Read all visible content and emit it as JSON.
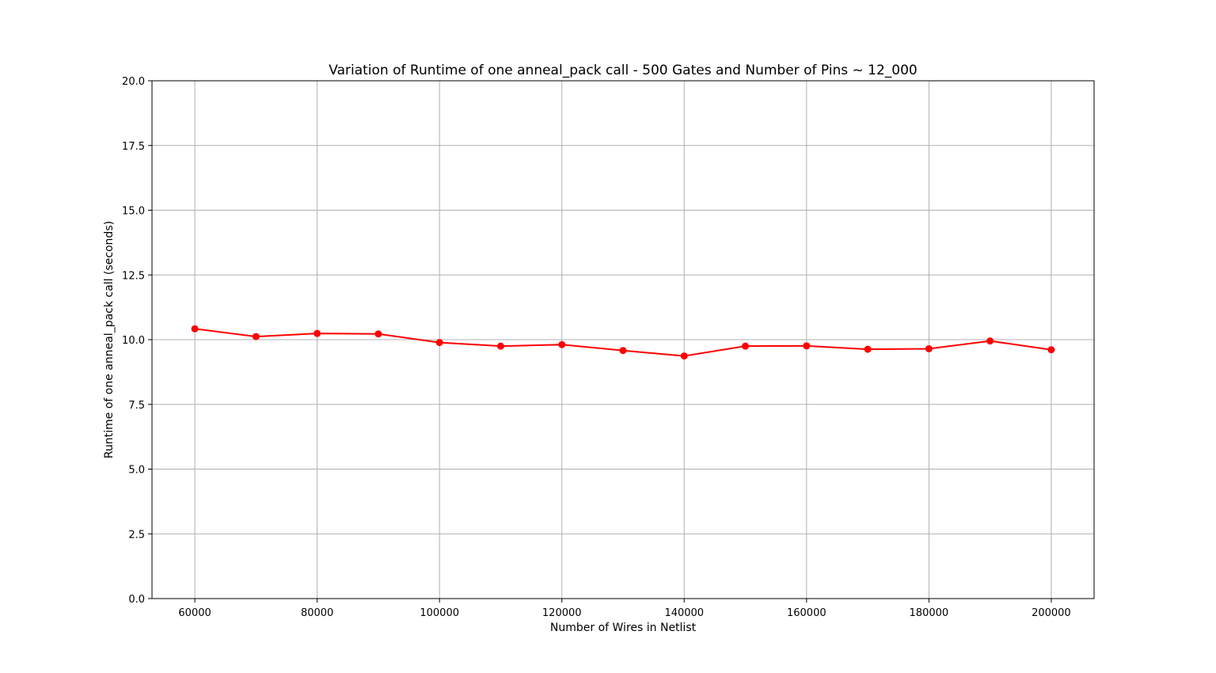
{
  "chart_data": {
    "type": "line",
    "title": "Variation of Runtime of one anneal_pack call - 500 Gates and Number of Pins ~ 12_000",
    "xlabel": "Number of Wires in Netlist",
    "ylabel": "Runtime of one anneal_pack call (seconds)",
    "xlim": [
      53000,
      207000
    ],
    "ylim": [
      0,
      20
    ],
    "xticks": [
      60000,
      80000,
      100000,
      120000,
      140000,
      160000,
      180000,
      200000
    ],
    "yticks": [
      0.0,
      2.5,
      5.0,
      7.5,
      10.0,
      12.5,
      15.0,
      17.5,
      20.0
    ],
    "xtick_labels": [
      "60000",
      "80000",
      "100000",
      "120000",
      "140000",
      "160000",
      "180000",
      "200000"
    ],
    "ytick_labels": [
      "0.0",
      "2.5",
      "5.0",
      "7.5",
      "10.0",
      "12.5",
      "15.0",
      "17.5",
      "20.0"
    ],
    "grid": true,
    "series": [
      {
        "color": "#ff0000",
        "marker": "circle",
        "x": [
          60000,
          70000,
          80000,
          90000,
          100000,
          110000,
          120000,
          130000,
          140000,
          150000,
          160000,
          170000,
          180000,
          190000,
          200000
        ],
        "y": [
          10.42,
          10.12,
          10.24,
          10.22,
          9.89,
          9.75,
          9.81,
          9.58,
          9.37,
          9.75,
          9.76,
          9.63,
          9.65,
          9.95,
          9.61
        ]
      }
    ]
  }
}
